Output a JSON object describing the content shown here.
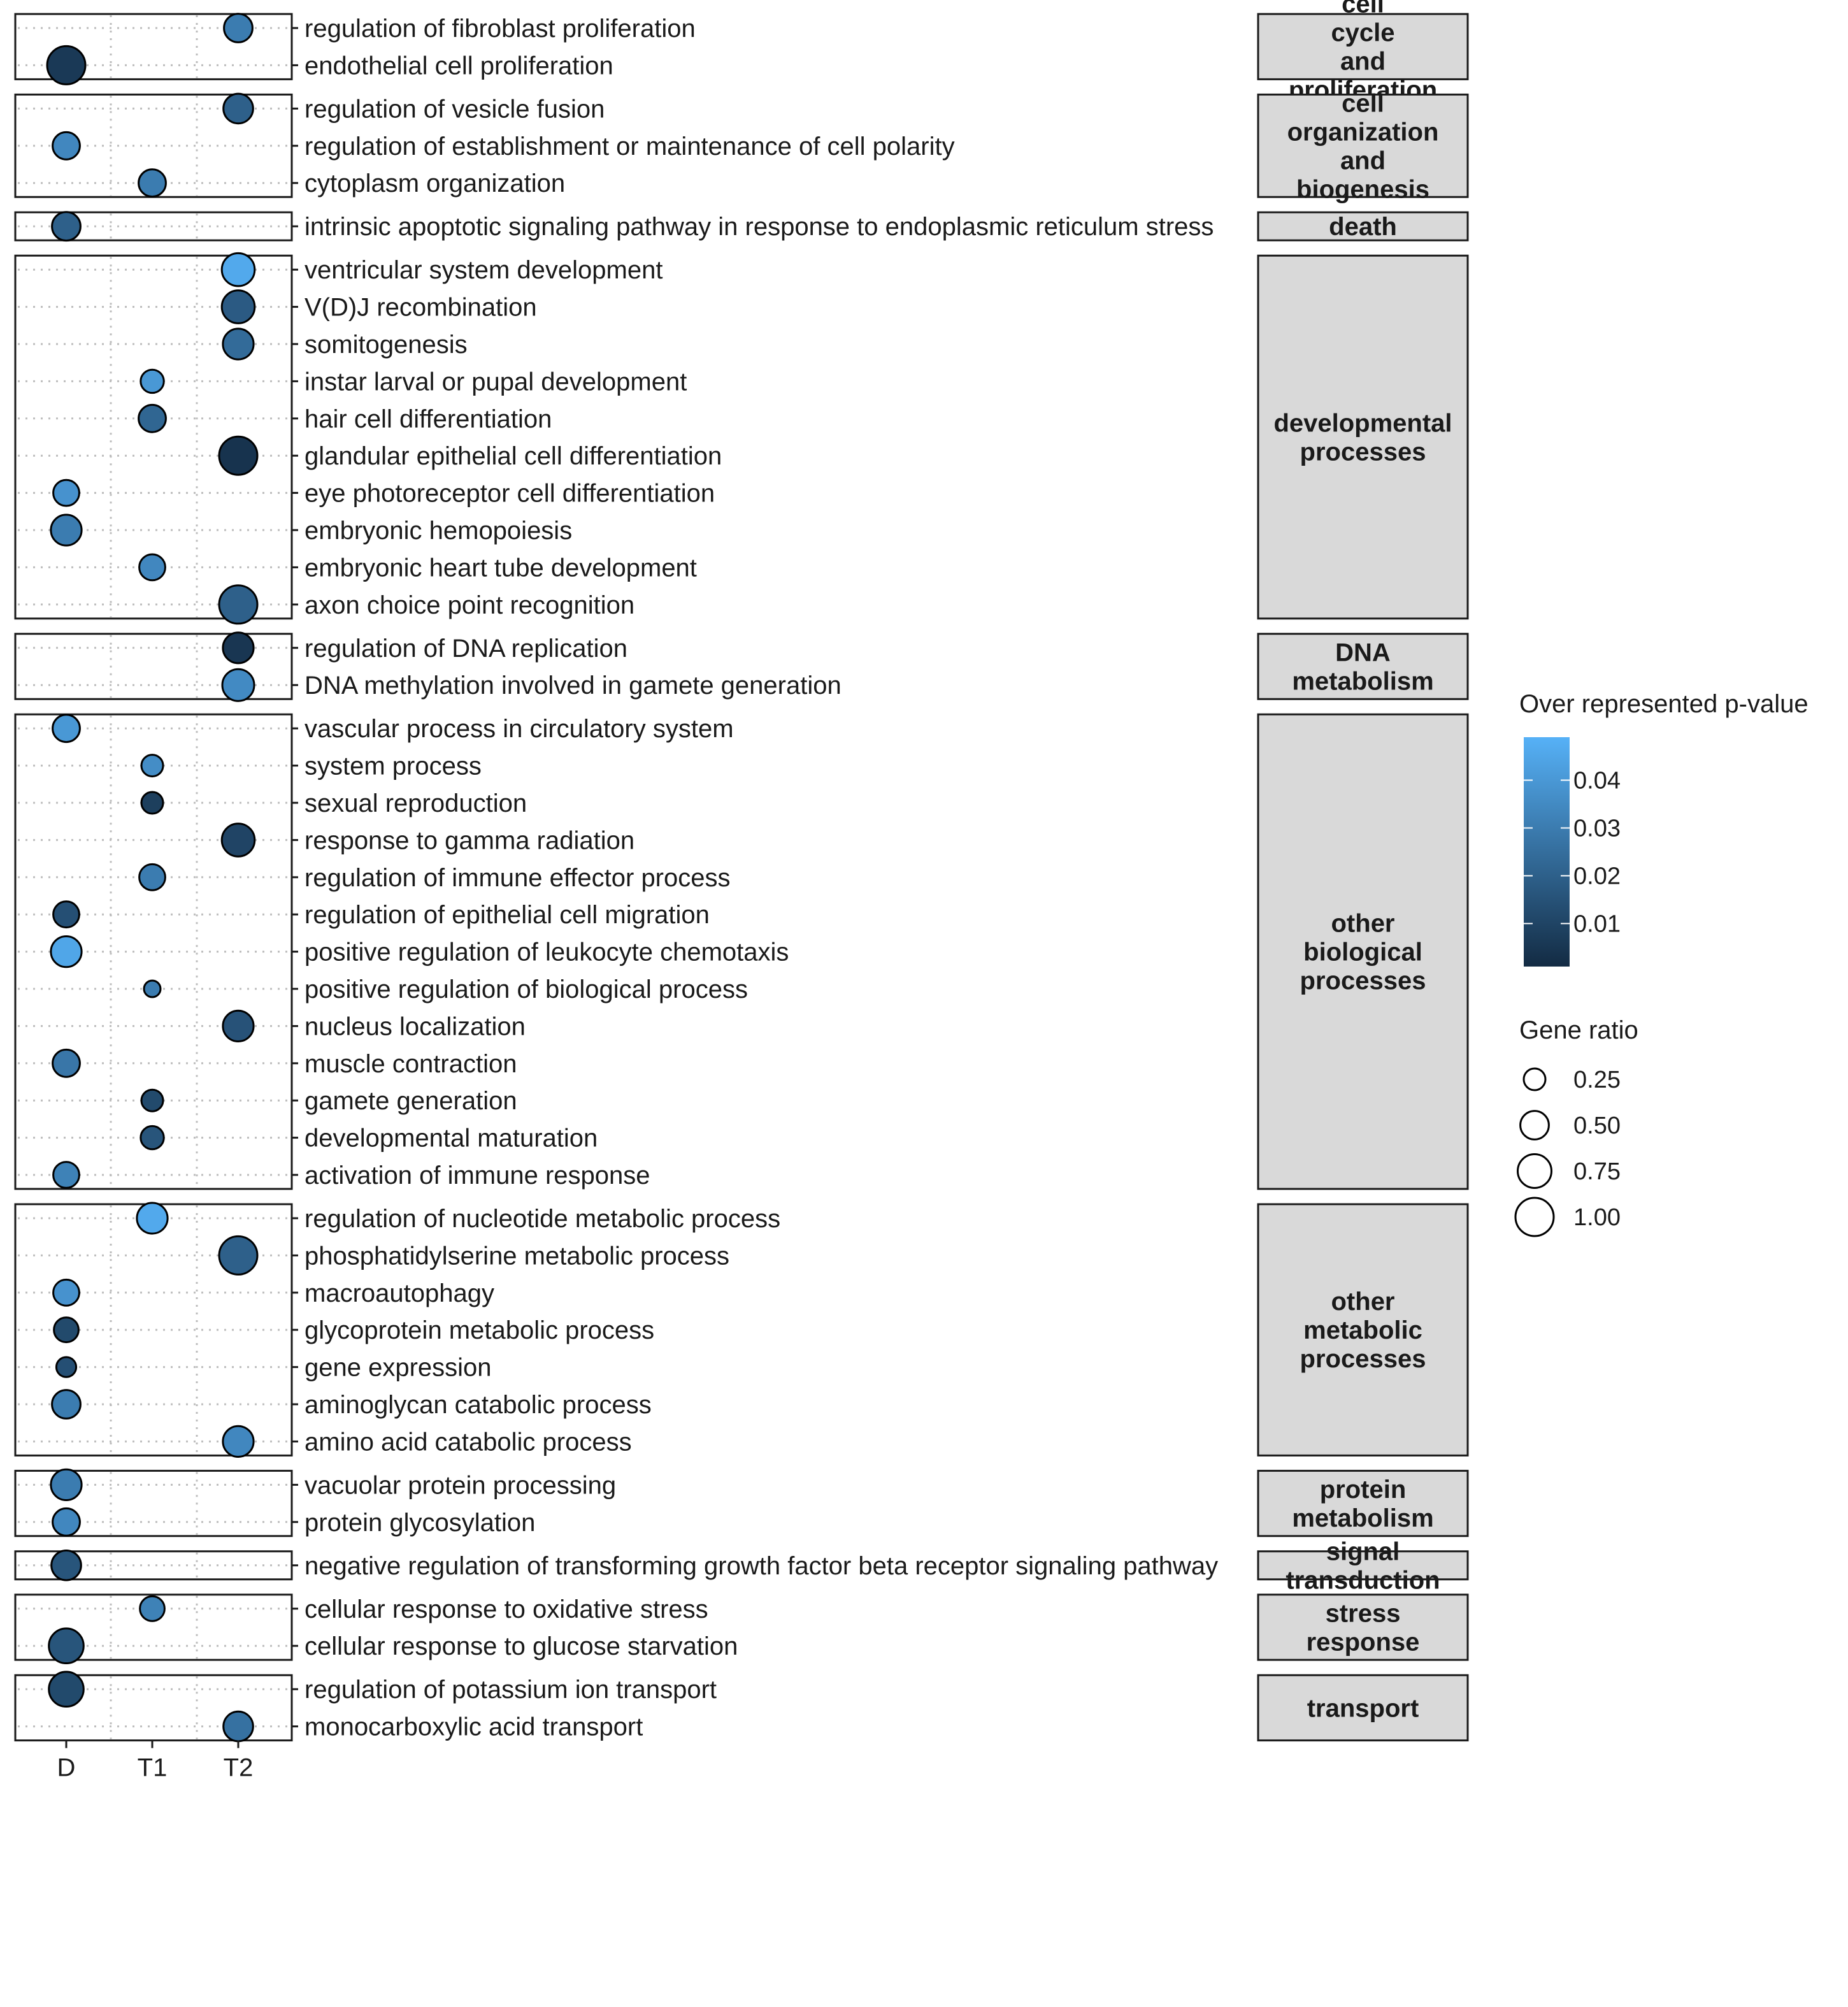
{
  "chart_data": {
    "type": "scatter",
    "x_categories": [
      "D",
      "T1",
      "T2"
    ],
    "color_legend": {
      "title": "Over represented p-value",
      "ticks": [
        0.04,
        0.03,
        0.02,
        0.01
      ],
      "tick_labels": [
        "0.04",
        "0.03",
        "0.02",
        "0.01"
      ],
      "range": [
        0.001,
        0.049
      ],
      "color_low": "#132b43",
      "color_high": "#56b1f7"
    },
    "size_legend": {
      "title": "Gene ratio",
      "values": [
        0.25,
        0.5,
        0.75,
        1.0
      ],
      "labels": [
        "0.25",
        "0.50",
        "0.75",
        "1.00"
      ]
    },
    "panels": [
      {
        "category": "cell cycle and proliferation",
        "strip_lines": [
          "cell",
          "cycle",
          "and",
          "proliferation"
        ],
        "terms": [
          {
            "term": "regulation of fibroblast proliferation",
            "x": "T2",
            "ratio": 0.5,
            "p": 0.03
          },
          {
            "term": "endothelial cell proliferation",
            "x": "D",
            "ratio": 1.0,
            "p": 0.006
          }
        ]
      },
      {
        "category": "cell organization and biogenesis",
        "strip_lines": [
          "cell",
          "organization",
          "and",
          "biogenesis"
        ],
        "terms": [
          {
            "term": "regulation of vesicle fusion",
            "x": "T2",
            "ratio": 0.55,
            "p": 0.02
          },
          {
            "term": "regulation of establishment or maintenance of cell polarity",
            "x": "D",
            "ratio": 0.45,
            "p": 0.034
          },
          {
            "term": "cytoplasm organization",
            "x": "T1",
            "ratio": 0.45,
            "p": 0.03
          }
        ]
      },
      {
        "category": "death",
        "strip_lines": [
          "death"
        ],
        "terms": [
          {
            "term": "intrinsic apoptotic signaling pathway in response to endoplasmic reticulum stress",
            "x": "D",
            "ratio": 0.5,
            "p": 0.02
          }
        ]
      },
      {
        "category": "developmental processes",
        "strip_lines": [
          "developmental",
          "processes"
        ],
        "terms": [
          {
            "term": "ventricular system development",
            "x": "T2",
            "ratio": 0.7,
            "p": 0.046
          },
          {
            "term": "V(D)J recombination",
            "x": "T2",
            "ratio": 0.7,
            "p": 0.018
          },
          {
            "term": "somitogenesis",
            "x": "T2",
            "ratio": 0.6,
            "p": 0.024
          },
          {
            "term": "instar larval or pupal development",
            "x": "T1",
            "ratio": 0.3,
            "p": 0.04
          },
          {
            "term": "hair cell differentiation",
            "x": "T1",
            "ratio": 0.45,
            "p": 0.022
          },
          {
            "term": "glandular epithelial cell differentiation",
            "x": "T2",
            "ratio": 1.0,
            "p": 0.004
          },
          {
            "term": "eye photoreceptor cell differentiation",
            "x": "D",
            "ratio": 0.4,
            "p": 0.038
          },
          {
            "term": "embryonic hemopoiesis",
            "x": "D",
            "ratio": 0.6,
            "p": 0.03
          },
          {
            "term": "embryonic heart tube development",
            "x": "T1",
            "ratio": 0.4,
            "p": 0.034
          },
          {
            "term": "axon choice point recognition",
            "x": "T2",
            "ratio": 1.0,
            "p": 0.02
          }
        ]
      },
      {
        "category": "DNA metabolism",
        "strip_lines": [
          "DNA",
          "metabolism"
        ],
        "terms": [
          {
            "term": "regulation of DNA replication",
            "x": "T2",
            "ratio": 0.6,
            "p": 0.005
          },
          {
            "term": "DNA methylation involved in gamete generation",
            "x": "T2",
            "ratio": 0.65,
            "p": 0.035
          }
        ]
      },
      {
        "category": "other biological processes",
        "strip_lines": [
          "other",
          "biological",
          "processes"
        ],
        "terms": [
          {
            "term": "vascular process in circulatory system",
            "x": "D",
            "ratio": 0.45,
            "p": 0.04
          },
          {
            "term": "system process",
            "x": "T1",
            "ratio": 0.25,
            "p": 0.036
          },
          {
            "term": "sexual reproduction",
            "x": "T1",
            "ratio": 0.25,
            "p": 0.008
          },
          {
            "term": "response to gamma radiation",
            "x": "T2",
            "ratio": 0.7,
            "p": 0.01
          },
          {
            "term": "regulation of immune effector process",
            "x": "T1",
            "ratio": 0.4,
            "p": 0.03
          },
          {
            "term": "regulation of epithelial cell migration",
            "x": "D",
            "ratio": 0.4,
            "p": 0.014
          },
          {
            "term": "positive regulation of leukocyte chemotaxis",
            "x": "D",
            "ratio": 0.6,
            "p": 0.045
          },
          {
            "term": "positive regulation of biological process",
            "x": "T1",
            "ratio": 0.12,
            "p": 0.03
          },
          {
            "term": "nucleus localization",
            "x": "T2",
            "ratio": 0.6,
            "p": 0.015
          },
          {
            "term": "muscle contraction",
            "x": "D",
            "ratio": 0.45,
            "p": 0.028
          },
          {
            "term": "gamete generation",
            "x": "T1",
            "ratio": 0.25,
            "p": 0.012
          },
          {
            "term": "developmental maturation",
            "x": "T1",
            "ratio": 0.3,
            "p": 0.016
          },
          {
            "term": "activation of immune response",
            "x": "D",
            "ratio": 0.4,
            "p": 0.032
          }
        ]
      },
      {
        "category": "other metabolic processes",
        "strip_lines": [
          "other",
          "metabolic",
          "processes"
        ],
        "terms": [
          {
            "term": "regulation of nucleotide metabolic process",
            "x": "T1",
            "ratio": 0.6,
            "p": 0.046
          },
          {
            "term": "phosphatidylserine metabolic process",
            "x": "T2",
            "ratio": 1.0,
            "p": 0.02
          },
          {
            "term": "macroautophagy",
            "x": "D",
            "ratio": 0.4,
            "p": 0.038
          },
          {
            "term": "glycoprotein metabolic process",
            "x": "D",
            "ratio": 0.35,
            "p": 0.012
          },
          {
            "term": "gene expression",
            "x": "D",
            "ratio": 0.2,
            "p": 0.014
          },
          {
            "term": "aminoglycan catabolic process",
            "x": "D",
            "ratio": 0.5,
            "p": 0.03
          },
          {
            "term": "amino acid catabolic process",
            "x": "T2",
            "ratio": 0.6,
            "p": 0.034
          }
        ]
      },
      {
        "category": "protein metabolism",
        "strip_lines": [
          "protein",
          "metabolism"
        ],
        "terms": [
          {
            "term": "vacuolar protein processing",
            "x": "D",
            "ratio": 0.6,
            "p": 0.03
          },
          {
            "term": "protein glycosylation",
            "x": "D",
            "ratio": 0.45,
            "p": 0.034
          }
        ]
      },
      {
        "category": "signal transduction",
        "strip_lines": [
          "signal",
          "transduction"
        ],
        "terms": [
          {
            "term": "negative regulation of transforming growth factor beta receptor signaling pathway",
            "x": "D",
            "ratio": 0.55,
            "p": 0.016
          }
        ]
      },
      {
        "category": "stress response",
        "strip_lines": [
          "stress",
          "response"
        ],
        "terms": [
          {
            "term": "cellular response to oxidative stress",
            "x": "T1",
            "ratio": 0.35,
            "p": 0.032
          },
          {
            "term": "cellular response to glucose starvation",
            "x": "D",
            "ratio": 0.8,
            "p": 0.016
          }
        ]
      },
      {
        "category": "transport",
        "strip_lines": [
          "transport"
        ],
        "terms": [
          {
            "term": "regulation of potassium ion transport",
            "x": "D",
            "ratio": 0.8,
            "p": 0.012
          },
          {
            "term": "monocarboxylic acid transport",
            "x": "T2",
            "ratio": 0.55,
            "p": 0.026
          }
        ]
      }
    ]
  }
}
